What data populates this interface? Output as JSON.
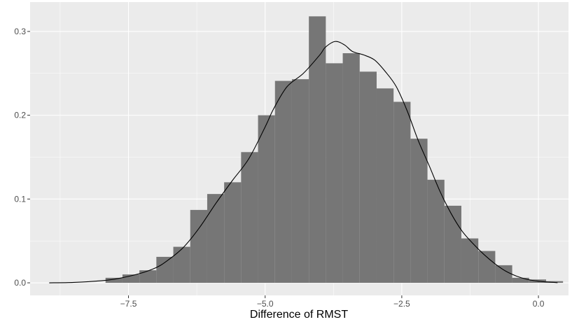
{
  "chart_data": {
    "type": "bar",
    "subtype": "histogram-with-density",
    "title": "",
    "xlabel": "Difference of RMST",
    "ylabel": "",
    "xlim": [
      -9.3,
      0.55
    ],
    "ylim": [
      -0.015,
      0.335
    ],
    "x_ticks": [
      -7.5,
      -5.0,
      -2.5,
      0.0
    ],
    "x_tick_labels": [
      "−7.5",
      "−5.0",
      "−2.5",
      "0.0"
    ],
    "y_ticks": [
      0.0,
      0.1,
      0.2,
      0.3
    ],
    "y_tick_labels": [
      "0.0",
      "0.1",
      "0.2",
      "0.3"
    ],
    "grid": true,
    "bin_width": 0.31,
    "bins": [
      {
        "x0": -7.92,
        "x1": -7.61,
        "density": 0.006
      },
      {
        "x0": -7.61,
        "x1": -7.3,
        "density": 0.01
      },
      {
        "x0": -7.3,
        "x1": -6.99,
        "density": 0.015
      },
      {
        "x0": -6.99,
        "x1": -6.68,
        "density": 0.031
      },
      {
        "x0": -6.68,
        "x1": -6.37,
        "density": 0.043
      },
      {
        "x0": -6.37,
        "x1": -6.06,
        "density": 0.087
      },
      {
        "x0": -6.06,
        "x1": -5.75,
        "density": 0.106
      },
      {
        "x0": -5.75,
        "x1": -5.44,
        "density": 0.12
      },
      {
        "x0": -5.44,
        "x1": -5.13,
        "density": 0.156
      },
      {
        "x0": -5.13,
        "x1": -4.82,
        "density": 0.2
      },
      {
        "x0": -4.82,
        "x1": -4.51,
        "density": 0.241
      },
      {
        "x0": -4.51,
        "x1": -4.2,
        "density": 0.243
      },
      {
        "x0": -4.2,
        "x1": -3.89,
        "density": 0.318
      },
      {
        "x0": -3.89,
        "x1": -3.58,
        "density": 0.262
      },
      {
        "x0": -3.58,
        "x1": -3.27,
        "density": 0.274
      },
      {
        "x0": -3.27,
        "x1": -2.96,
        "density": 0.252
      },
      {
        "x0": -2.96,
        "x1": -2.65,
        "density": 0.232
      },
      {
        "x0": -2.65,
        "x1": -2.34,
        "density": 0.216
      },
      {
        "x0": -2.34,
        "x1": -2.03,
        "density": 0.172
      },
      {
        "x0": -2.03,
        "x1": -1.72,
        "density": 0.123
      },
      {
        "x0": -1.72,
        "x1": -1.41,
        "density": 0.092
      },
      {
        "x0": -1.41,
        "x1": -1.1,
        "density": 0.053
      },
      {
        "x0": -1.1,
        "x1": -0.79,
        "density": 0.038
      },
      {
        "x0": -0.79,
        "x1": -0.48,
        "density": 0.021
      },
      {
        "x0": -0.48,
        "x1": -0.17,
        "density": 0.006
      },
      {
        "x0": -0.17,
        "x1": 0.14,
        "density": 0.004
      },
      {
        "x0": 0.14,
        "x1": 0.45,
        "density": 0.002
      }
    ],
    "density_curve": {
      "x": [
        -8.95,
        -8.5,
        -8.0,
        -7.7,
        -7.3,
        -7.0,
        -6.8,
        -6.5,
        -6.2,
        -5.9,
        -5.6,
        -5.3,
        -5.0,
        -4.85,
        -4.6,
        -4.3,
        -4.0,
        -3.9,
        -3.72,
        -3.55,
        -3.4,
        -3.2,
        -3.0,
        -2.8,
        -2.6,
        -2.4,
        -2.2,
        -2.0,
        -1.8,
        -1.6,
        -1.4,
        -1.2,
        -1.0,
        -0.8,
        -0.6,
        -0.4,
        -0.2,
        0.0,
        0.2,
        0.35
      ],
      "y": [
        0.0,
        0.0005,
        0.0025,
        0.005,
        0.011,
        0.018,
        0.026,
        0.042,
        0.066,
        0.095,
        0.122,
        0.148,
        0.186,
        0.207,
        0.234,
        0.25,
        0.272,
        0.281,
        0.288,
        0.284,
        0.276,
        0.272,
        0.266,
        0.252,
        0.234,
        0.205,
        0.17,
        0.14,
        0.109,
        0.083,
        0.062,
        0.047,
        0.034,
        0.023,
        0.014,
        0.008,
        0.004,
        0.002,
        0.0008,
        0.0002
      ]
    },
    "bar_color": "#767676",
    "panel_background": "#ebebeb",
    "gridline_color": "#ffffff",
    "curve_color": "#000000"
  }
}
